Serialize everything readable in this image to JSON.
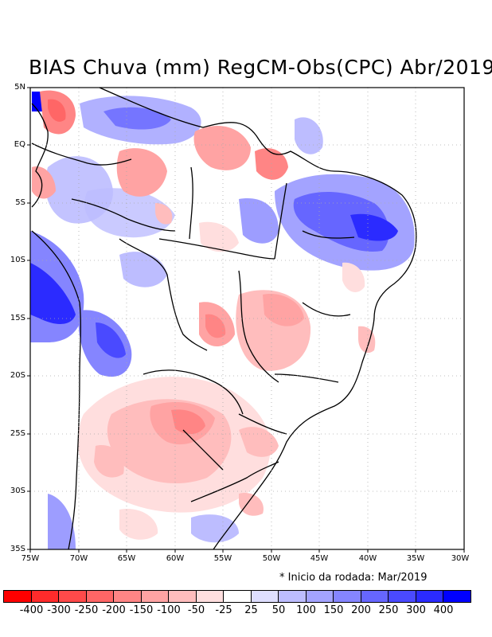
{
  "title": "BIAS Chuva (mm) RegCM-Obs(CPC) Abr/2019",
  "note": "* Inicio da rodada: Mar/2019",
  "y_axis": {
    "ticks": [
      "5N",
      "EQ",
      "5S",
      "10S",
      "15S",
      "20S",
      "25S",
      "30S",
      "35S"
    ]
  },
  "x_axis": {
    "ticks": [
      "75W",
      "70W",
      "65W",
      "60W",
      "55W",
      "50W",
      "45W",
      "40W",
      "35W",
      "30W"
    ]
  },
  "legend": {
    "colors": [
      "#ff0000",
      "#ff2b2b",
      "#ff4a4a",
      "#ff6666",
      "#ff8585",
      "#ffa3a3",
      "#ffbdbd",
      "#ffdede",
      "#ffffff",
      "#dedeff",
      "#bdbdff",
      "#a3a3ff",
      "#8585ff",
      "#6666ff",
      "#4a4aff",
      "#2b2bff",
      "#0000ff"
    ],
    "labels": [
      "-400",
      "-300",
      "-250",
      "-200",
      "-150",
      "-100",
      "-50",
      "-25",
      "25",
      "50",
      "100",
      "150",
      "200",
      "250",
      "300",
      "400"
    ]
  }
}
